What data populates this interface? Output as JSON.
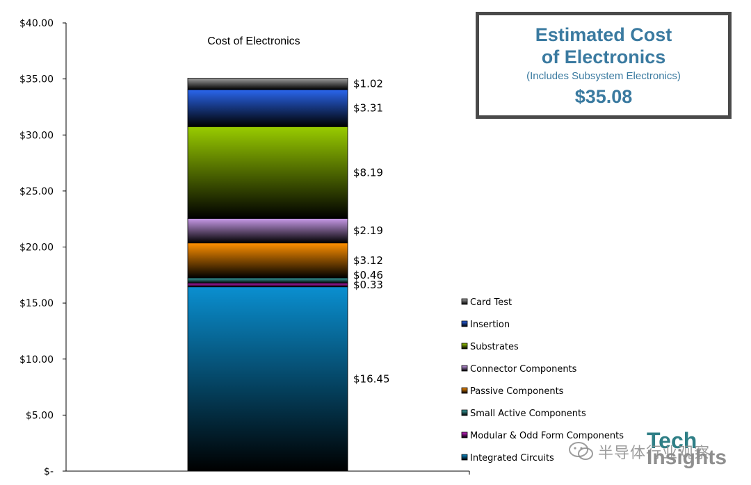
{
  "chart_data": {
    "type": "bar",
    "stacked": true,
    "title": "Cost of Electronics",
    "categories": [
      ""
    ],
    "ylim": [
      0,
      40
    ],
    "y_ticks": [
      {
        "value": 0,
        "label": "$-"
      },
      {
        "value": 5,
        "label": "$5.00"
      },
      {
        "value": 10,
        "label": "$10.00"
      },
      {
        "value": 15,
        "label": "$15.00"
      },
      {
        "value": 20,
        "label": "$20.00"
      },
      {
        "value": 25,
        "label": "$25.00"
      },
      {
        "value": 30,
        "label": "$30.00"
      },
      {
        "value": 35,
        "label": "$35.00"
      },
      {
        "value": 40,
        "label": "$40.00"
      }
    ],
    "grid": false,
    "legend_position": "right",
    "series": [
      {
        "name": "Integrated Circuits",
        "value": 16.45,
        "label": "$16.45",
        "color": "#0a8fd0"
      },
      {
        "name": "Modular & Odd Form Components",
        "value": 0.33,
        "label": "$0.33",
        "color": "#cc22cc"
      },
      {
        "name": "Small Active Components",
        "value": 0.46,
        "label": "$0.46",
        "color": "#3aa6a6"
      },
      {
        "name": "Passive Components",
        "value": 3.12,
        "label": "$3.12",
        "color": "#ff9000"
      },
      {
        "name": "Connector Components",
        "value": 2.19,
        "label": "$2.19",
        "color": "#c89ae8"
      },
      {
        "name": "Substrates",
        "value": 8.19,
        "label": "$8.19",
        "color": "#99cc00"
      },
      {
        "name": "Insertion",
        "value": 3.31,
        "label": "$3.31",
        "color": "#2a66ee"
      },
      {
        "name": "Card Test",
        "value": 1.02,
        "label": "$1.02",
        "color": "#a0a0a0"
      }
    ],
    "legend_order": [
      "Card Test",
      "Insertion",
      "Substrates",
      "Connector Components",
      "Passive Components",
      "Small Active Components",
      "Modular & Odd Form Components",
      "Integrated Circuits"
    ]
  },
  "callout": {
    "line1": "Estimated Cost",
    "line2": "of Electronics",
    "line3": "(Includes Subsystem Electronics)",
    "line4": "$35.08",
    "text_color": "#3a7aa0",
    "border_color": "#4a4a4a"
  },
  "watermark": {
    "chinese": "半导体行业观察",
    "tech": "Tech",
    "insights": "Insights"
  }
}
